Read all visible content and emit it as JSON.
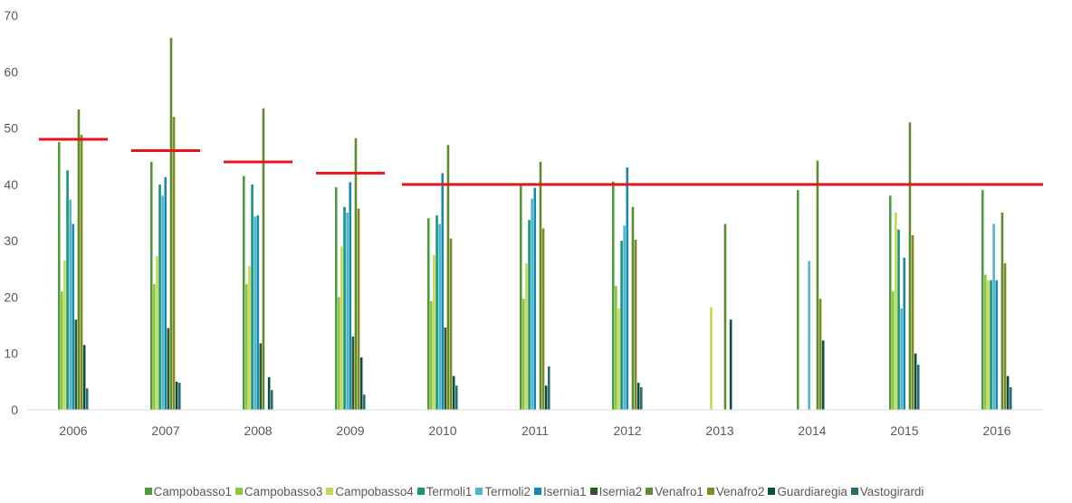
{
  "chart_data": {
    "type": "bar",
    "categories": [
      "2006",
      "2007",
      "2008",
      "2009",
      "2010",
      "2011",
      "2012",
      "2013",
      "2014",
      "2015",
      "2016"
    ],
    "ylim": [
      0,
      70
    ],
    "yticks": [
      0,
      10,
      20,
      30,
      40,
      50,
      60,
      70
    ],
    "grid": false,
    "legend_position": "bottom",
    "series": [
      {
        "name": "Campobasso1",
        "color": "#4e9a3a",
        "values": [
          47.5,
          44,
          41.5,
          39.5,
          34,
          40,
          40.5,
          null,
          39,
          38,
          39
        ]
      },
      {
        "name": "Campobasso3",
        "color": "#8cc63f",
        "values": [
          21,
          22.3,
          22.3,
          20,
          19.3,
          19.7,
          22,
          null,
          null,
          21,
          24
        ]
      },
      {
        "name": "Campobasso4",
        "color": "#c5d94c",
        "values": [
          26.5,
          27.3,
          25.5,
          29,
          27.5,
          26,
          18,
          18.2,
          null,
          35,
          23
        ]
      },
      {
        "name": "Termoli1",
        "color": "#15947f",
        "values": [
          42.5,
          40,
          40,
          36,
          34.5,
          33.7,
          30,
          null,
          null,
          32,
          23
        ]
      },
      {
        "name": "Termoli2",
        "color": "#4bb6cc",
        "values": [
          37.3,
          38,
          34.3,
          35,
          33,
          37.5,
          32.7,
          null,
          26.4,
          18,
          33
        ]
      },
      {
        "name": "Isernia1",
        "color": "#1888b0",
        "values": [
          33,
          41.3,
          34.5,
          40.4,
          42,
          39.4,
          43,
          null,
          null,
          27,
          23
        ]
      },
      {
        "name": "Isernia2",
        "color": "#2e5b24",
        "values": [
          16,
          14.5,
          11.8,
          13,
          14.6,
          null,
          null,
          null,
          null,
          null,
          null
        ]
      },
      {
        "name": "Venafro1",
        "color": "#5f8a2e",
        "values": [
          53.3,
          66,
          53.5,
          48.2,
          47,
          44,
          36,
          33,
          44.2,
          51,
          35
        ]
      },
      {
        "name": "Venafro2",
        "color": "#7f8c1f",
        "values": [
          48.8,
          52,
          null,
          35.7,
          30.4,
          32.2,
          30.2,
          null,
          19.7,
          31,
          26
        ]
      },
      {
        "name": "Guardiaregia",
        "color": "#0b4d43",
        "values": [
          11.5,
          5,
          5.8,
          9.3,
          6,
          4.3,
          4.8,
          16,
          12.3,
          10,
          6
        ]
      },
      {
        "name": "Vastogirardi",
        "color": "#2a6e73",
        "values": [
          3.8,
          4.8,
          3.5,
          2.7,
          4.3,
          7.7,
          4,
          null,
          null,
          8,
          4
        ]
      }
    ],
    "limit_lines": [
      {
        "value": 48,
        "categories": [
          "2006"
        ]
      },
      {
        "value": 46,
        "categories": [
          "2007"
        ]
      },
      {
        "value": 44,
        "categories": [
          "2008"
        ]
      },
      {
        "value": 42,
        "categories": [
          "2009"
        ]
      },
      {
        "value": 40,
        "categories": [
          "2010",
          "2011",
          "2012",
          "2013",
          "2014",
          "2015",
          "2016"
        ]
      }
    ],
    "limit_line_color": "#e8141b"
  }
}
